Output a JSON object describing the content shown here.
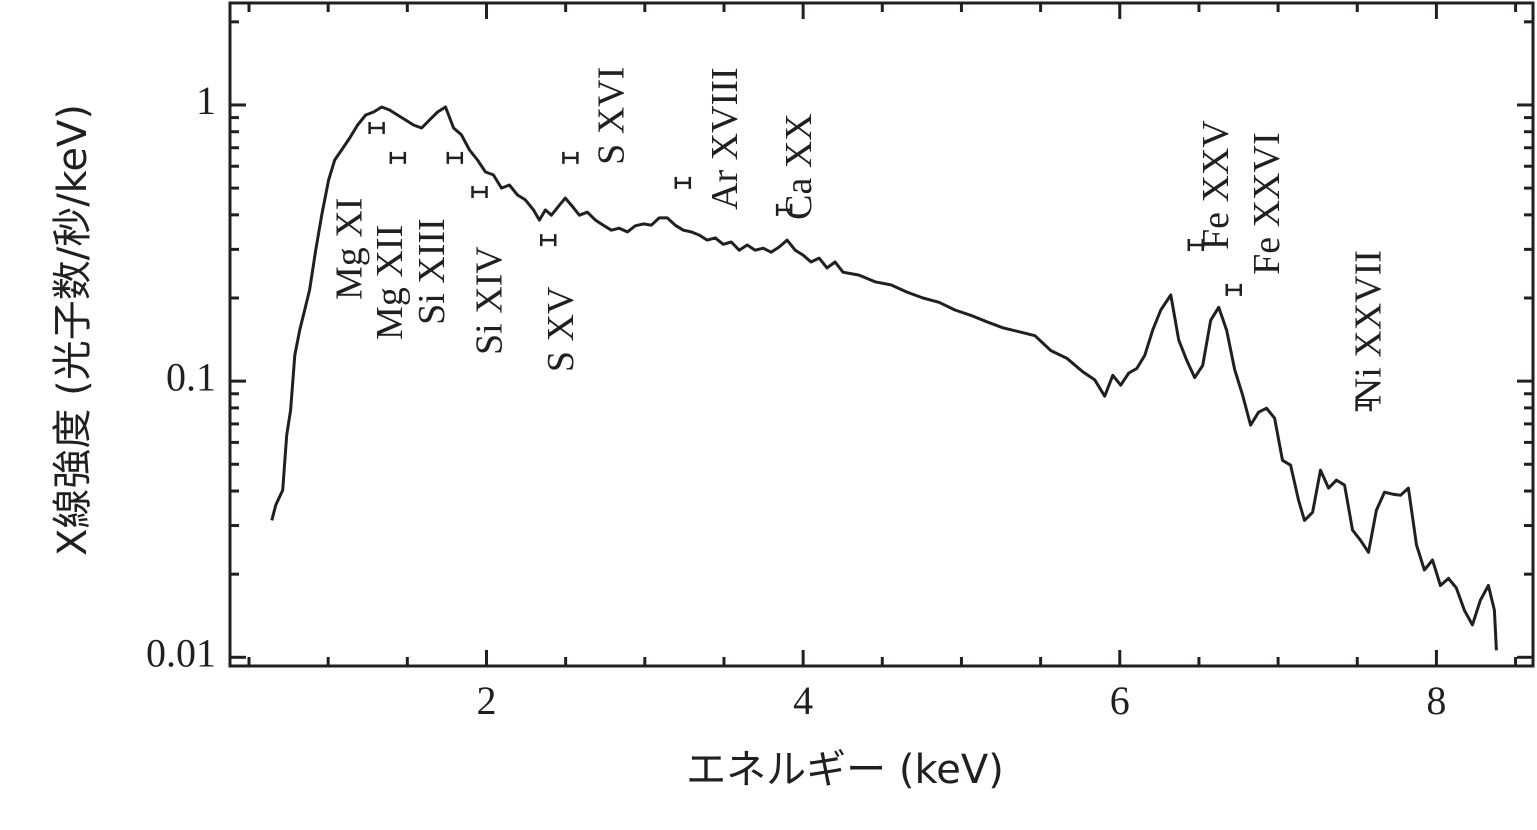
{
  "chart_data": {
    "type": "line",
    "x_label": "エネルギー (keV)",
    "y_label": "X線強度 (光子数/秒/keV)",
    "y_log": true,
    "color": "#231f20",
    "xlim": [
      0.38,
      8.61
    ],
    "ylim": [
      0.0093,
      2.34
    ],
    "xticks": [
      2,
      4,
      6,
      8
    ],
    "x_minor_ticks": [
      0.5,
      1,
      1.5,
      2.5,
      3,
      3.5,
      4.5,
      5,
      5.5,
      6.5,
      7,
      7.5,
      8.5
    ],
    "yticks": [
      0.01,
      0.1,
      1
    ],
    "y_minor_ticks": [
      0.02,
      0.03,
      0.04,
      0.05,
      0.06,
      0.07,
      0.08,
      0.09,
      0.2,
      0.3,
      0.4,
      0.5,
      0.6,
      0.7,
      0.8,
      0.9,
      2
    ],
    "x": [
      0.644,
      0.669,
      0.713,
      0.738,
      0.763,
      0.789,
      0.82,
      0.852,
      0.883,
      0.921,
      0.959,
      1.003,
      1.041,
      1.085,
      1.136,
      1.186,
      1.237,
      1.287,
      1.338,
      1.388,
      1.438,
      1.489,
      1.539,
      1.59,
      1.64,
      1.691,
      1.741,
      1.792,
      1.842,
      1.893,
      1.943,
      1.994,
      2.044,
      2.095,
      2.145,
      2.196,
      2.246,
      2.297,
      2.334,
      2.372,
      2.41,
      2.461,
      2.498,
      2.536,
      2.587,
      2.637,
      2.688,
      2.738,
      2.789,
      2.839,
      2.89,
      2.94,
      2.991,
      3.041,
      3.091,
      3.142,
      3.192,
      3.243,
      3.293,
      3.344,
      3.394,
      3.445,
      3.495,
      3.546,
      3.596,
      3.647,
      3.697,
      3.748,
      3.798,
      3.849,
      3.899,
      3.95,
      4.0,
      4.05,
      4.101,
      4.151,
      4.202,
      4.252,
      4.353,
      4.454,
      4.555,
      4.656,
      4.757,
      4.858,
      4.959,
      5.06,
      5.161,
      5.262,
      5.363,
      5.464,
      5.565,
      5.666,
      5.767,
      5.842,
      5.905,
      5.956,
      6.006,
      6.057,
      6.107,
      6.158,
      6.208,
      6.259,
      6.322,
      6.372,
      6.423,
      6.473,
      6.524,
      6.574,
      6.625,
      6.675,
      6.726,
      6.776,
      6.826,
      6.877,
      6.927,
      6.978,
      7.028,
      7.079,
      7.129,
      7.167,
      7.218,
      7.268,
      7.319,
      7.369,
      7.42,
      7.47,
      7.521,
      7.571,
      7.621,
      7.672,
      7.722,
      7.773,
      7.823,
      7.874,
      7.924,
      7.975,
      8.025,
      8.076,
      8.126,
      8.177,
      8.227,
      8.278,
      8.328,
      8.366,
      8.379
    ],
    "values": [
      0.0313,
      0.0356,
      0.0403,
      0.0637,
      0.0785,
      0.124,
      0.153,
      0.181,
      0.214,
      0.298,
      0.399,
      0.535,
      0.632,
      0.687,
      0.759,
      0.846,
      0.92,
      0.943,
      0.983,
      0.959,
      0.92,
      0.882,
      0.846,
      0.825,
      0.882,
      0.943,
      0.983,
      0.825,
      0.779,
      0.687,
      0.632,
      0.572,
      0.558,
      0.5,
      0.513,
      0.472,
      0.453,
      0.417,
      0.383,
      0.417,
      0.399,
      0.434,
      0.46,
      0.434,
      0.399,
      0.409,
      0.383,
      0.367,
      0.352,
      0.358,
      0.347,
      0.365,
      0.371,
      0.367,
      0.39,
      0.39,
      0.367,
      0.352,
      0.347,
      0.338,
      0.324,
      0.33,
      0.313,
      0.319,
      0.298,
      0.311,
      0.298,
      0.303,
      0.293,
      0.306,
      0.324,
      0.298,
      0.286,
      0.27,
      0.279,
      0.257,
      0.27,
      0.248,
      0.242,
      0.229,
      0.223,
      0.21,
      0.2,
      0.193,
      0.181,
      0.173,
      0.164,
      0.156,
      0.151,
      0.146,
      0.129,
      0.121,
      0.108,
      0.101,
      0.0882,
      0.105,
      0.0967,
      0.107,
      0.111,
      0.124,
      0.153,
      0.181,
      0.205,
      0.141,
      0.119,
      0.103,
      0.114,
      0.166,
      0.185,
      0.153,
      0.11,
      0.089,
      0.0693,
      0.0772,
      0.0798,
      0.0734,
      0.0517,
      0.0496,
      0.0371,
      0.0313,
      0.0335,
      0.0476,
      0.041,
      0.0438,
      0.042,
      0.0289,
      0.0265,
      0.024,
      0.0341,
      0.0396,
      0.039,
      0.0386,
      0.041,
      0.0255,
      0.0207,
      0.0225,
      0.0182,
      0.0193,
      0.0178,
      0.0148,
      0.0131,
      0.0161,
      0.0182,
      0.0148,
      0.0106
    ],
    "annotations": [
      {
        "text": "Mg XI",
        "x": 1.306,
        "y": 0.825
      },
      {
        "text": "Mg XII",
        "x": 1.44,
        "y": 0.643
      },
      {
        "text": "Si XIII",
        "x": 1.8,
        "y": 0.643
      },
      {
        "text": "Si XIV",
        "x": 1.956,
        "y": 0.484
      },
      {
        "text": "S XV",
        "x": 2.39,
        "y": 0.324
      },
      {
        "text": "S XVI",
        "x": 2.53,
        "y": 0.643
      },
      {
        "text": "Ar XVIII",
        "x": 3.24,
        "y": 0.522
      },
      {
        "text": "Ca XX",
        "x": 3.88,
        "y": 0.417
      },
      {
        "text": "Fe XXV",
        "x": 6.48,
        "y": 0.311
      },
      {
        "text": "Fe XXVI",
        "x": 6.72,
        "y": 0.214
      },
      {
        "text": "Ni XXVII",
        "x": 7.54,
        "y": 0.0818
      }
    ]
  }
}
